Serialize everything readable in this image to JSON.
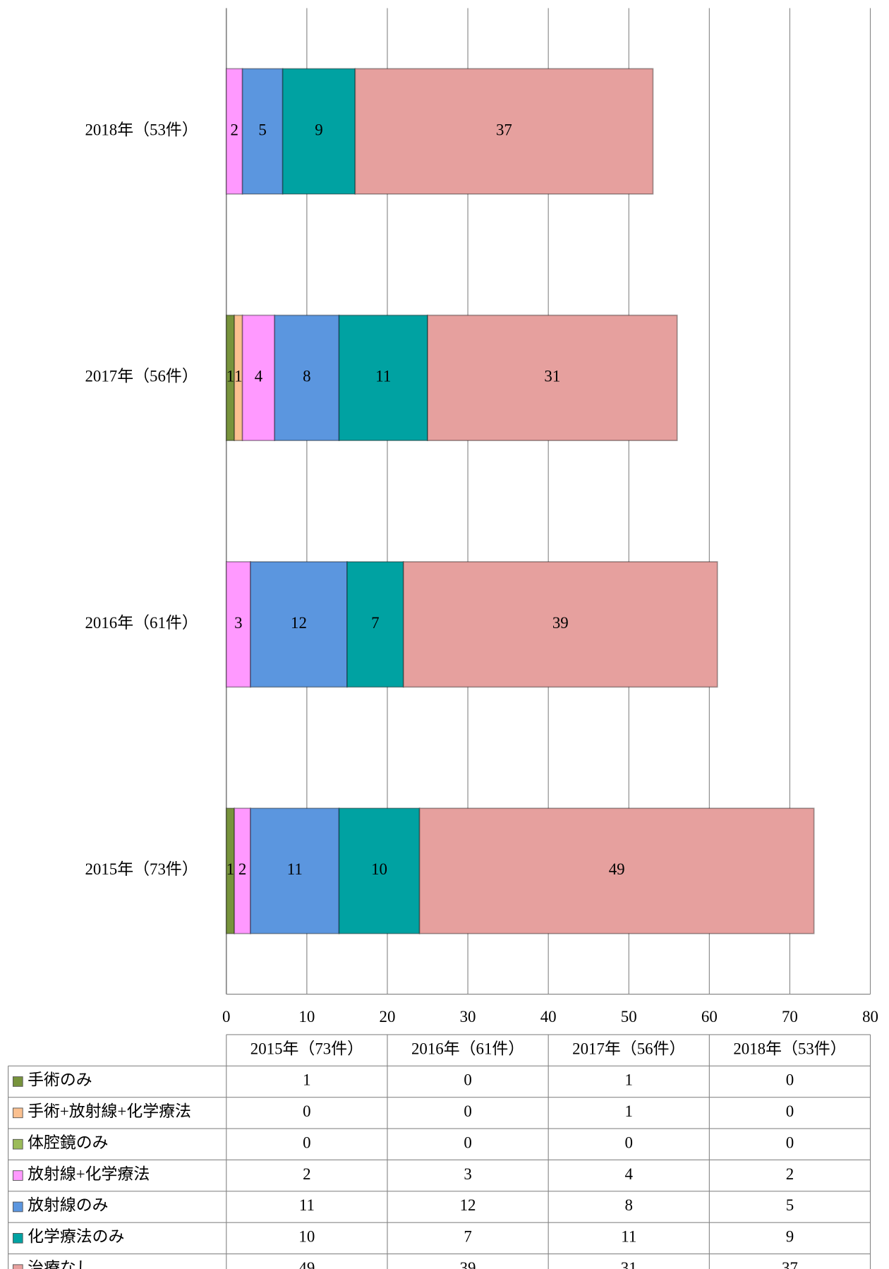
{
  "chart_data": {
    "type": "bar",
    "orientation": "horizontal",
    "stacked": true,
    "categories": [
      "2015年（73件）",
      "2016年（61件）",
      "2017年（56件）",
      "2018年（53件）"
    ],
    "series": [
      {
        "name": "手術のみ",
        "color": "#77933c",
        "values": [
          1,
          0,
          1,
          0
        ]
      },
      {
        "name": "手術+放射線+化学療法",
        "color": "#fac090",
        "values": [
          0,
          0,
          1,
          0
        ]
      },
      {
        "name": "体腔鏡のみ",
        "color": "#9bbb59",
        "values": [
          0,
          0,
          0,
          0
        ]
      },
      {
        "name": "放射線+化学療法",
        "color": "#ff99ff",
        "values": [
          2,
          3,
          4,
          2
        ]
      },
      {
        "name": "放射線のみ",
        "color": "#5b96df",
        "values": [
          11,
          12,
          8,
          5
        ]
      },
      {
        "name": "化学療法のみ",
        "color": "#00a2a2",
        "values": [
          10,
          7,
          11,
          9
        ]
      },
      {
        "name": "治療なし",
        "color": "#e6a09e",
        "values": [
          49,
          39,
          31,
          37
        ]
      }
    ],
    "xlim": [
      0,
      80
    ],
    "xticks": [
      0,
      10,
      20,
      30,
      40,
      50,
      60,
      70,
      80
    ],
    "grid": true,
    "data_table": true
  }
}
